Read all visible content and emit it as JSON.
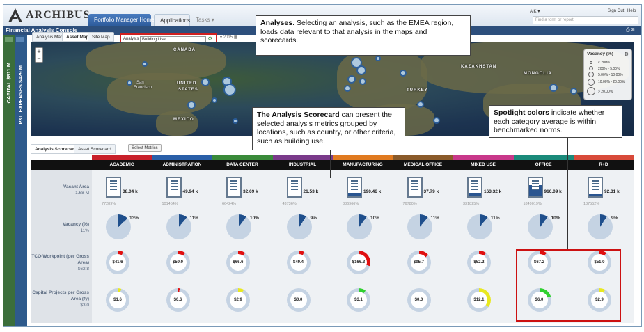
{
  "app": {
    "brand": "ARCHIBUS",
    "tabs": [
      "Portfolio Manager Home",
      "Applications",
      "Tasks"
    ],
    "user": "AIK",
    "signout": "Sign Out",
    "help": "Help",
    "search_placeholder": "Find a form or report",
    "console_title": "Financial Analysis Console"
  },
  "sidebar": {
    "capital": "CAPITAL  $811 M",
    "pl": "P&L EXPENSES  $429 M"
  },
  "subtabs": [
    "Analysis Map",
    "Asset Map",
    "Site Map"
  ],
  "analysis": {
    "label": "Analysis",
    "value": "Building Use"
  },
  "year": "2015",
  "map": {
    "labels": [
      "CANADA",
      "UNITED",
      "STATES",
      "MEXICO",
      "KAZAKHSTAN",
      "MONGOLIA",
      "TURKEY",
      "San",
      "Francisco"
    ]
  },
  "legend": {
    "title": "Vacancy (%)",
    "rows": [
      "< 200%",
      "200% - 5.00%",
      "5.00% - 10.00%",
      "10.00% - 20.00%",
      "> 20.00%"
    ]
  },
  "callouts": {
    "analyses": {
      "bold": "Analyses",
      "text": ". Selecting an analysis, such as the EMEA region, loads data relevant to that analysis in the maps and scorecards."
    },
    "scorecard": {
      "bold": "The Analysis Scorecard",
      "text": " can present the selected analysis metrics grouped by locations, such as country, or other criteria, such as building use."
    },
    "spotlight": {
      "bold": "Spotlight colors",
      "text": " indicate whether each category average is within benchmarked norms."
    }
  },
  "score_tabs": [
    "Analysis Scorecard",
    "Asset Scorecard"
  ],
  "select_metrics": "Select Metrics",
  "colors": {
    "academic": "#c8202a",
    "administration": "#2a5fa8",
    "data_center": "#3a8a3a",
    "industrial": "#7a3a8a",
    "manufacturing": "#e07a20",
    "medical_office": "#8a5a2a",
    "mixed_use": "#c8388a",
    "office": "#1a8a7a",
    "rd": "#d84a3a"
  },
  "columns": [
    "ACADEMIC",
    "ADMINISTRATION",
    "DATA CENTER",
    "INDUSTRIAL",
    "MANUFACTURING",
    "MEDICAL OFFICE",
    "MIXED USE",
    "OFFICE",
    "R+D"
  ],
  "rows": [
    {
      "label": "Vacant Area",
      "sub": "1.68 M"
    },
    {
      "label": "Vacancy (%)",
      "sub": "11%"
    },
    {
      "label": "TCO-Workpoint (per Gross Area)",
      "sub": "$62.8"
    },
    {
      "label": "Capital Projects per Gross Area (fy)",
      "sub": "$3.0"
    }
  ],
  "vacant": [
    {
      "val": "38.04 k",
      "pct": "77289%",
      "fill": 0.05
    },
    {
      "val": "49.94 k",
      "pct": "101454%",
      "fill": 0.05
    },
    {
      "val": "32.69 k",
      "pct": "66424%",
      "fill": 0.05
    },
    {
      "val": "21.53 k",
      "pct": "43736%",
      "fill": 0.05
    },
    {
      "val": "190.46 k",
      "pct": "386966%",
      "fill": 0.2
    },
    {
      "val": "37.79 k",
      "pct": "76780%",
      "fill": 0.05
    },
    {
      "val": "163.32 k",
      "pct": "331825%",
      "fill": 0.15
    },
    {
      "val": "910.09 k",
      "pct": "1849019%",
      "fill": 0.6
    },
    {
      "val": "92.31 k",
      "pct": "187552%",
      "fill": 0.1
    }
  ],
  "vacancy": [
    {
      "val": "13%",
      "pct": 13
    },
    {
      "val": "11%",
      "pct": 11
    },
    {
      "val": "10%",
      "pct": 10
    },
    {
      "val": "9%",
      "pct": 9
    },
    {
      "val": "10%",
      "pct": 10
    },
    {
      "val": "11%",
      "pct": 11
    },
    {
      "val": "11%",
      "pct": 11
    },
    {
      "val": "10%",
      "pct": 10
    },
    {
      "val": "9%",
      "pct": 9
    }
  ],
  "tco": [
    {
      "val": "$41.6",
      "pct": 8,
      "color": "#e01010"
    },
    {
      "val": "$59.0",
      "pct": 10,
      "color": "#e01010"
    },
    {
      "val": "$66.6",
      "pct": 10,
      "color": "#e01010"
    },
    {
      "val": "$49.4",
      "pct": 8,
      "color": "#e01010"
    },
    {
      "val": "$166.3",
      "pct": 30,
      "color": "#e01010"
    },
    {
      "val": "$95.7",
      "pct": 14,
      "color": "#e01010"
    },
    {
      "val": "$52.2",
      "pct": 10,
      "color": "#e01010"
    },
    {
      "val": "$67.2",
      "pct": 10,
      "color": "#e01010"
    },
    {
      "val": "$51.0",
      "pct": 10,
      "color": "#e01010"
    }
  ],
  "capital": [
    {
      "val": "$1.6",
      "pct": 5,
      "color": "#e8e820"
    },
    {
      "val": "$0.6",
      "pct": 2,
      "color": "#e01010"
    },
    {
      "val": "$2.9",
      "pct": 8,
      "color": "#e8e820"
    },
    {
      "val": "$0.0",
      "pct": 0,
      "color": "#e01010"
    },
    {
      "val": "$3.1",
      "pct": 10,
      "color": "#30d030"
    },
    {
      "val": "$0.0",
      "pct": 0,
      "color": "#e01010"
    },
    {
      "val": "$12.1",
      "pct": 35,
      "color": "#e8e820"
    },
    {
      "val": "$6.0",
      "pct": 20,
      "color": "#30d030"
    },
    {
      "val": "$2.9",
      "pct": 8,
      "color": "#e8e820"
    }
  ]
}
